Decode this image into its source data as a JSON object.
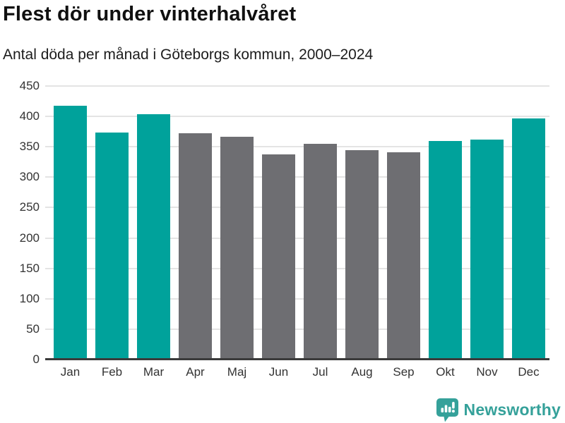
{
  "header": {
    "title": "Flest dör under vinterhalvåret",
    "subtitle": "Antal döda per månad i Göteborgs kommun, 2000–2024"
  },
  "chart_data": {
    "type": "bar",
    "title": "Flest dör under vinterhalvåret",
    "subtitle": "Antal döda per månad i Göteborgs kommun, 2000–2024",
    "categories": [
      "Jan",
      "Feb",
      "Mar",
      "Apr",
      "Maj",
      "Jun",
      "Jul",
      "Aug",
      "Sep",
      "Okt",
      "Nov",
      "Dec"
    ],
    "values": [
      417,
      374,
      404,
      372,
      366,
      337,
      355,
      344,
      341,
      360,
      362,
      397
    ],
    "bar_roles": [
      "highlight",
      "highlight",
      "highlight",
      "muted",
      "muted",
      "muted",
      "muted",
      "muted",
      "muted",
      "highlight",
      "highlight",
      "highlight"
    ],
    "xlabel": "",
    "ylabel": "",
    "ylim": [
      0,
      450
    ],
    "yticks": [
      0,
      50,
      100,
      150,
      200,
      250,
      300,
      350,
      400,
      450
    ],
    "grid": "horizontal",
    "legend": "none",
    "colors": {
      "highlight": "#00a29b",
      "muted": "#6e6e72",
      "gridline": "#e4e4e4",
      "axis": "#3a3a3a",
      "tick_text": "#333333"
    }
  },
  "footer": {
    "brand": "Newsworthy",
    "logo_icon": "bar-chart-speech-bubble-icon",
    "brand_color": "#35a19a"
  }
}
